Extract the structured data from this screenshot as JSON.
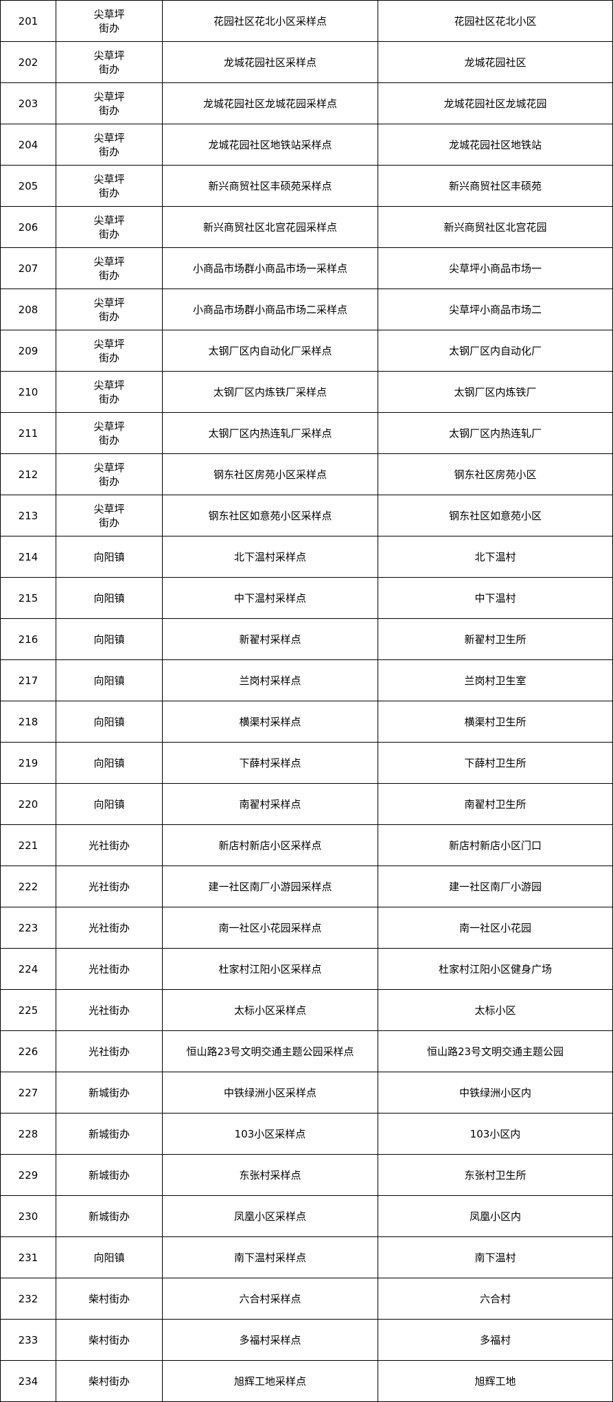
{
  "rows": [
    {
      "no": "201",
      "street": "尖草坪\n街办",
      "site": "花园社区花北小区采样点",
      "address": "花园社区花北小区"
    },
    {
      "no": "202",
      "street": "尖草坪\n街办",
      "site": "龙城花园社区采样点",
      "address": "龙城花园社区"
    },
    {
      "no": "203",
      "street": "尖草坪\n街办",
      "site": "龙城花园社区龙城花园采样点",
      "address": "龙城花园社区龙城花园"
    },
    {
      "no": "204",
      "street": "尖草坪\n街办",
      "site": "龙城花园社区地铁站采样点",
      "address": "龙城花园社区地铁站"
    },
    {
      "no": "205",
      "street": "尖草坪\n街办",
      "site": "新兴商贸社区丰硕苑采样点",
      "address": "新兴商贸社区丰硕苑"
    },
    {
      "no": "206",
      "street": "尖草坪\n街办",
      "site": "新兴商贸社区北宫花园采样点",
      "address": "新兴商贸社区北宫花园"
    },
    {
      "no": "207",
      "street": "尖草坪\n街办",
      "site": "小商品市场群小商品市场一采样点",
      "address": "尖草坪小商品市场一"
    },
    {
      "no": "208",
      "street": "尖草坪\n街办",
      "site": "小商品市场群小商品市场二采样点",
      "address": "尖草坪小商品市场二"
    },
    {
      "no": "209",
      "street": "尖草坪\n街办",
      "site": "太钢厂区内自动化厂采样点",
      "address": "太钢厂区内自动化厂"
    },
    {
      "no": "210",
      "street": "尖草坪\n街办",
      "site": "太钢厂区内炼铁厂采样点",
      "address": "太钢厂区内炼铁厂"
    },
    {
      "no": "211",
      "street": "尖草坪\n街办",
      "site": "太钢厂区内热连轧厂采样点",
      "address": "太钢厂区内热连轧厂"
    },
    {
      "no": "212",
      "street": "尖草坪\n街办",
      "site": "钢东社区房苑小区采样点",
      "address": "钢东社区房苑小区"
    },
    {
      "no": "213",
      "street": "尖草坪\n街办",
      "site": "钢东社区如意苑小区采样点",
      "address": "钢东社区如意苑小区"
    },
    {
      "no": "214",
      "street": "向阳镇",
      "site": "北下温村采样点",
      "address": "北下温村"
    },
    {
      "no": "215",
      "street": "向阳镇",
      "site": "中下温村采样点",
      "address": "中下温村"
    },
    {
      "no": "216",
      "street": "向阳镇",
      "site": "新翟村采样点",
      "address": "新翟村卫生所"
    },
    {
      "no": "217",
      "street": "向阳镇",
      "site": "兰岗村采样点",
      "address": "兰岗村卫生室"
    },
    {
      "no": "218",
      "street": "向阳镇",
      "site": "横渠村采样点",
      "address": "横渠村卫生所"
    },
    {
      "no": "219",
      "street": "向阳镇",
      "site": "下薛村采样点",
      "address": "下薛村卫生所"
    },
    {
      "no": "220",
      "street": "向阳镇",
      "site": "南翟村采样点",
      "address": "南翟村卫生所"
    },
    {
      "no": "221",
      "street": "光社街办",
      "site": "新店村新店小区采样点",
      "address": "新店村新店小区门口"
    },
    {
      "no": "222",
      "street": "光社街办",
      "site": "建一社区南厂小游园采样点",
      "address": "建一社区南厂小游园"
    },
    {
      "no": "223",
      "street": "光社街办",
      "site": "南一社区小花园采样点",
      "address": "南一社区小花园"
    },
    {
      "no": "224",
      "street": "光社街办",
      "site": "杜家村江阳小区采样点",
      "address": "杜家村江阳小区健身广场"
    },
    {
      "no": "225",
      "street": "光社街办",
      "site": "太标小区采样点",
      "address": "太标小区"
    },
    {
      "no": "226",
      "street": "光社街办",
      "site": "恒山路23号文明交通主题公园采样点",
      "address": "恒山路23号文明交通主题公园"
    },
    {
      "no": "227",
      "street": "新城街办",
      "site": "中铁绿洲小区采样点",
      "address": "中铁绿洲小区内"
    },
    {
      "no": "228",
      "street": "新城街办",
      "site": "103小区采样点",
      "address": "103小区内"
    },
    {
      "no": "229",
      "street": "新城街办",
      "site": "东张村采样点",
      "address": "东张村卫生所"
    },
    {
      "no": "230",
      "street": "新城街办",
      "site": "凤凰小区采样点",
      "address": "凤凰小区内"
    },
    {
      "no": "231",
      "street": "向阳镇",
      "site": "南下温村采样点",
      "address": "南下温村"
    },
    {
      "no": "232",
      "street": "柴村街办",
      "site": "六合村采样点",
      "address": "六合村"
    },
    {
      "no": "233",
      "street": "柴村街办",
      "site": "多福村采样点",
      "address": "多福村"
    },
    {
      "no": "234",
      "street": "柴村街办",
      "site": "旭辉工地采样点",
      "address": "旭辉工地"
    }
  ]
}
